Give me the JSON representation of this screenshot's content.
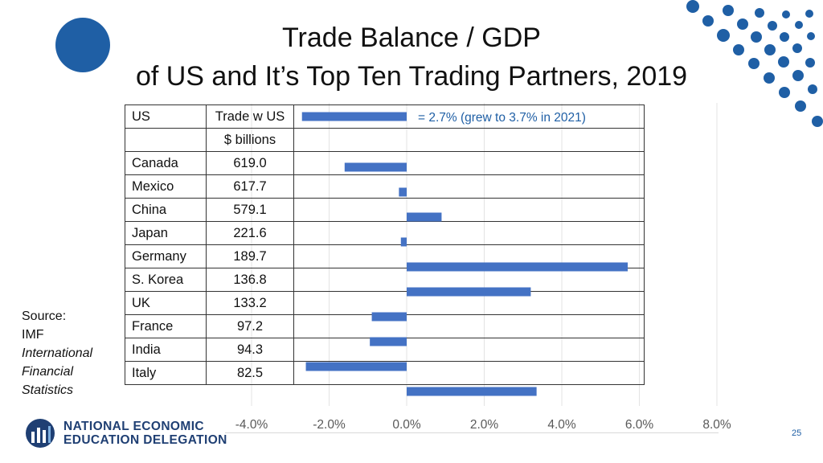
{
  "title_line1": "Trade Balance / GDP",
  "title_line2": "of US and It’s Top Ten Trading Partners, 2019",
  "table": {
    "header": [
      "US",
      "Trade w US"
    ],
    "subheader": [
      "",
      "$ billions"
    ],
    "rows": [
      {
        "country": "Canada",
        "trade": "619.0"
      },
      {
        "country": "Mexico",
        "trade": "617.7"
      },
      {
        "country": "China",
        "trade": "579.1"
      },
      {
        "country": "Japan",
        "trade": "221.6"
      },
      {
        "country": "Germany",
        "trade": "189.7"
      },
      {
        "country": "S. Korea",
        "trade": "136.8"
      },
      {
        "country": "UK",
        "trade": "133.2"
      },
      {
        "country": "France",
        "trade": "97.2"
      },
      {
        "country": "India",
        "trade": "94.3"
      },
      {
        "country": "Italy",
        "trade": "82.5"
      }
    ]
  },
  "source": {
    "line1": "Source:",
    "line2": "IMF",
    "line3": "International",
    "line4": "Financial",
    "line5": "Statistics"
  },
  "logo": {
    "line1": "NATIONAL ECONOMIC",
    "line2": "EDUCATION DELEGATION"
  },
  "page_number": "25",
  "colors": {
    "bar": "#4472c4",
    "brand": "#1f5fa5"
  },
  "chart_data": {
    "type": "bar",
    "orientation": "horizontal",
    "categories": [
      "US",
      "Canada",
      "Mexico",
      "China",
      "Japan",
      "Germany",
      "S. Korea",
      "UK",
      "France",
      "India",
      "Italy"
    ],
    "values": [
      -2.7,
      -1.6,
      -0.2,
      0.9,
      -0.15,
      5.7,
      3.2,
      -0.9,
      -0.95,
      -2.6,
      3.35
    ],
    "xlim": [
      -4.0,
      8.0
    ],
    "ticks": [
      -4.0,
      -2.0,
      0.0,
      2.0,
      4.0,
      6.0,
      8.0
    ],
    "tick_labels": [
      "-4.0%",
      "-2.0%",
      "0.0%",
      "2.0%",
      "4.0%",
      "6.0%",
      "8.0%"
    ],
    "annotation": "= 2.7% (grew to 3.7% in 2021)",
    "title": "Trade Balance / GDP of US and It’s Top Ten Trading Partners, 2019",
    "grid": true
  }
}
